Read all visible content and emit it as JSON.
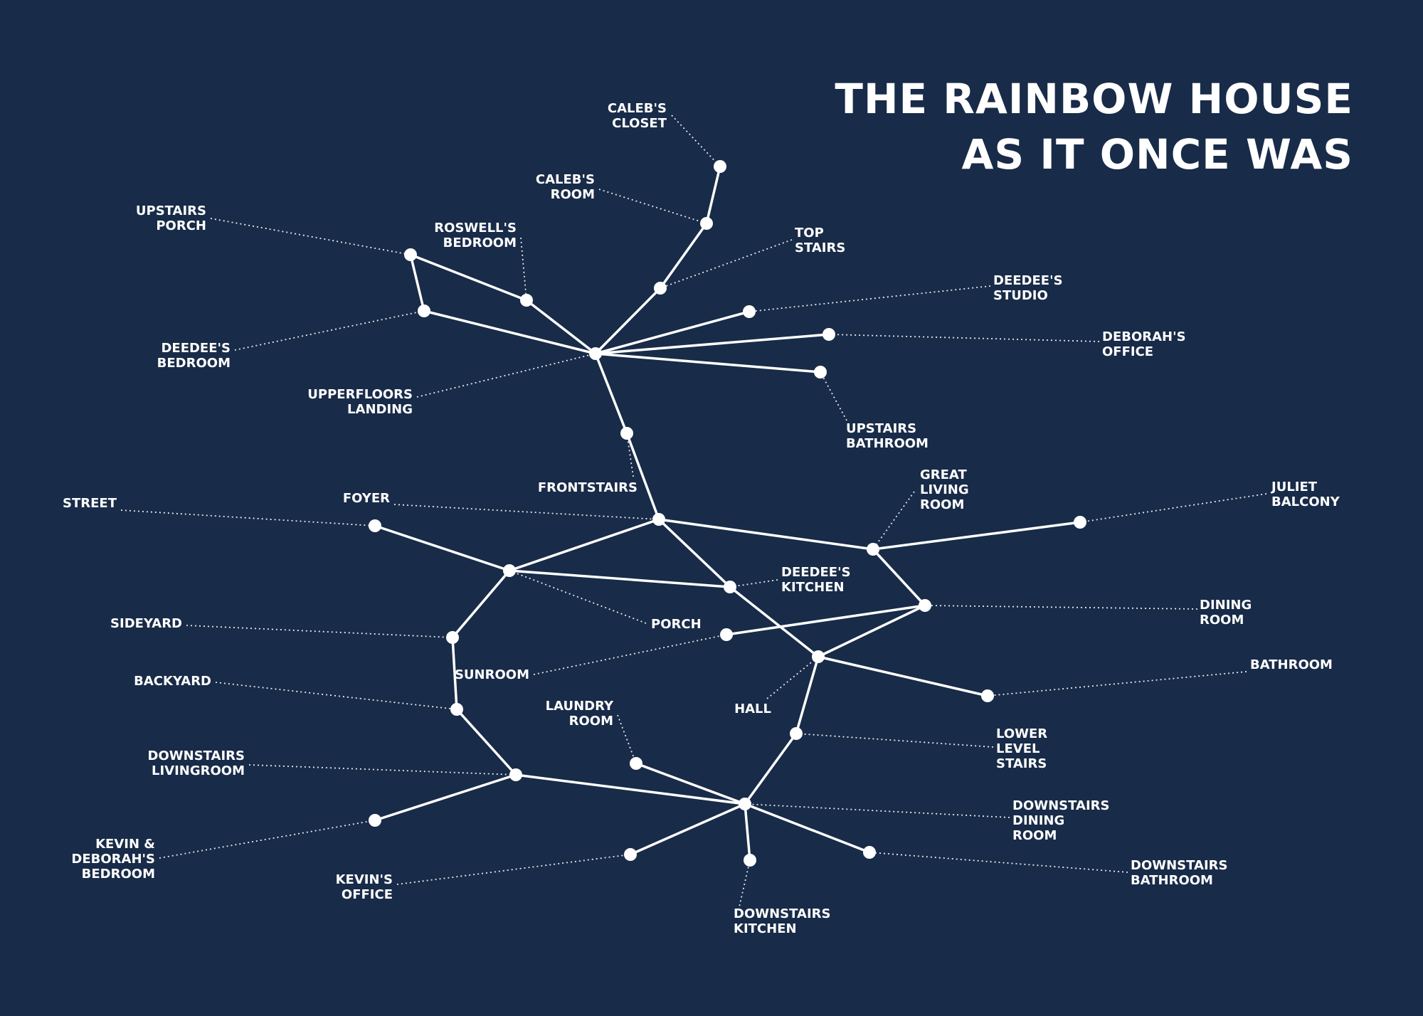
{
  "title": {
    "line1": "THE RAINBOW HOUSE",
    "line2": "AS IT ONCE WAS"
  },
  "colors": {
    "background": "#182b48",
    "foreground": "#ffffff"
  },
  "nodes": [
    {
      "id": "calebs_closet",
      "lines": [
        "CALEB'S",
        "CLOSET"
      ]
    },
    {
      "id": "calebs_room",
      "lines": [
        "CALEB'S",
        "ROOM"
      ]
    },
    {
      "id": "top_stairs",
      "lines": [
        "TOP",
        "STAIRS"
      ]
    },
    {
      "id": "upstairs_porch",
      "lines": [
        "UPSTAIRS",
        "PORCH"
      ]
    },
    {
      "id": "roswells_bedroom",
      "lines": [
        "ROSWELL'S",
        "BEDROOM"
      ]
    },
    {
      "id": "deedees_bedroom",
      "lines": [
        "DEEDEE'S",
        "BEDROOM"
      ]
    },
    {
      "id": "deedees_studio",
      "lines": [
        "DEEDEE'S",
        "STUDIO"
      ]
    },
    {
      "id": "deborahs_office",
      "lines": [
        "DEBORAH'S",
        "OFFICE"
      ]
    },
    {
      "id": "upstairs_bathroom",
      "lines": [
        "UPSTAIRS",
        "BATHROOM"
      ]
    },
    {
      "id": "upperfloors_landing",
      "lines": [
        "UPPERFLOORS",
        "LANDING"
      ]
    },
    {
      "id": "frontstairs",
      "lines": [
        "FRONTSTAIRS"
      ]
    },
    {
      "id": "foyer",
      "lines": [
        "FOYER"
      ]
    },
    {
      "id": "street",
      "lines": [
        "STREET"
      ]
    },
    {
      "id": "great_living_room",
      "lines": [
        "GREAT",
        "LIVING",
        "ROOM"
      ]
    },
    {
      "id": "juliet_balcony",
      "lines": [
        "JULIET",
        "BALCONY"
      ]
    },
    {
      "id": "porch",
      "lines": [
        "PORCH"
      ]
    },
    {
      "id": "deedees_kitchen",
      "lines": [
        "DEEDEE'S",
        "KITCHEN"
      ]
    },
    {
      "id": "dining_room",
      "lines": [
        "DINING",
        "ROOM"
      ]
    },
    {
      "id": "sideyard",
      "lines": [
        "SIDEYARD"
      ]
    },
    {
      "id": "sunroom",
      "lines": [
        "SUNROOM"
      ]
    },
    {
      "id": "hall",
      "lines": [
        "HALL"
      ]
    },
    {
      "id": "bathroom",
      "lines": [
        "BATHROOM"
      ]
    },
    {
      "id": "backyard",
      "lines": [
        "BACKYARD"
      ]
    },
    {
      "id": "laundry_room",
      "lines": [
        "LAUNDRY",
        "ROOM"
      ]
    },
    {
      "id": "lower_level_stairs",
      "lines": [
        "LOWER",
        "LEVEL",
        "STAIRS"
      ]
    },
    {
      "id": "downstairs_livingroom",
      "lines": [
        "DOWNSTAIRS",
        "LIVINGROOM"
      ]
    },
    {
      "id": "downstairs_dining_room",
      "lines": [
        "DOWNSTAIRS",
        "DINING",
        "ROOM"
      ]
    },
    {
      "id": "kevin_deborahs_bedroom",
      "lines": [
        "KEVIN &",
        "DEBORAH'S",
        "BEDROOM"
      ]
    },
    {
      "id": "kevins_office",
      "lines": [
        "KEVIN'S",
        "OFFICE"
      ]
    },
    {
      "id": "downstairs_bathroom",
      "lines": [
        "DOWNSTAIRS",
        "BATHROOM"
      ]
    },
    {
      "id": "downstairs_kitchen",
      "lines": [
        "DOWNSTAIRS",
        "KITCHEN"
      ]
    }
  ],
  "edges": [
    [
      "calebs_closet",
      "calebs_room"
    ],
    [
      "calebs_room",
      "top_stairs"
    ],
    [
      "top_stairs",
      "upperfloors_landing"
    ],
    [
      "upstairs_porch",
      "roswells_bedroom"
    ],
    [
      "upstairs_porch",
      "deedees_bedroom"
    ],
    [
      "roswells_bedroom",
      "upperfloors_landing"
    ],
    [
      "deedees_bedroom",
      "upperfloors_landing"
    ],
    [
      "upperfloors_landing",
      "deedees_studio"
    ],
    [
      "upperfloors_landing",
      "deborahs_office"
    ],
    [
      "upperfloors_landing",
      "upstairs_bathroom"
    ],
    [
      "upperfloors_landing",
      "frontstairs"
    ],
    [
      "frontstairs",
      "foyer"
    ],
    [
      "foyer",
      "great_living_room"
    ],
    [
      "great_living_room",
      "juliet_balcony"
    ],
    [
      "great_living_room",
      "dining_room"
    ],
    [
      "foyer",
      "porch"
    ],
    [
      "foyer",
      "deedees_kitchen"
    ],
    [
      "street",
      "porch"
    ],
    [
      "porch",
      "deedees_kitchen"
    ],
    [
      "porch",
      "sideyard"
    ],
    [
      "deedees_kitchen",
      "hall"
    ],
    [
      "sunroom",
      "dining_room"
    ],
    [
      "dining_room",
      "hall"
    ],
    [
      "hall",
      "bathroom"
    ],
    [
      "hall",
      "lower_level_stairs"
    ],
    [
      "sideyard",
      "backyard"
    ],
    [
      "backyard",
      "downstairs_livingroom"
    ],
    [
      "downstairs_livingroom",
      "kevin_deborahs_bedroom"
    ],
    [
      "downstairs_livingroom",
      "downstairs_dining_room"
    ],
    [
      "laundry_room",
      "downstairs_dining_room"
    ],
    [
      "lower_level_stairs",
      "downstairs_dining_room"
    ],
    [
      "downstairs_dining_room",
      "kevins_office"
    ],
    [
      "downstairs_dining_room",
      "downstairs_kitchen"
    ],
    [
      "downstairs_dining_room",
      "downstairs_bathroom"
    ]
  ]
}
